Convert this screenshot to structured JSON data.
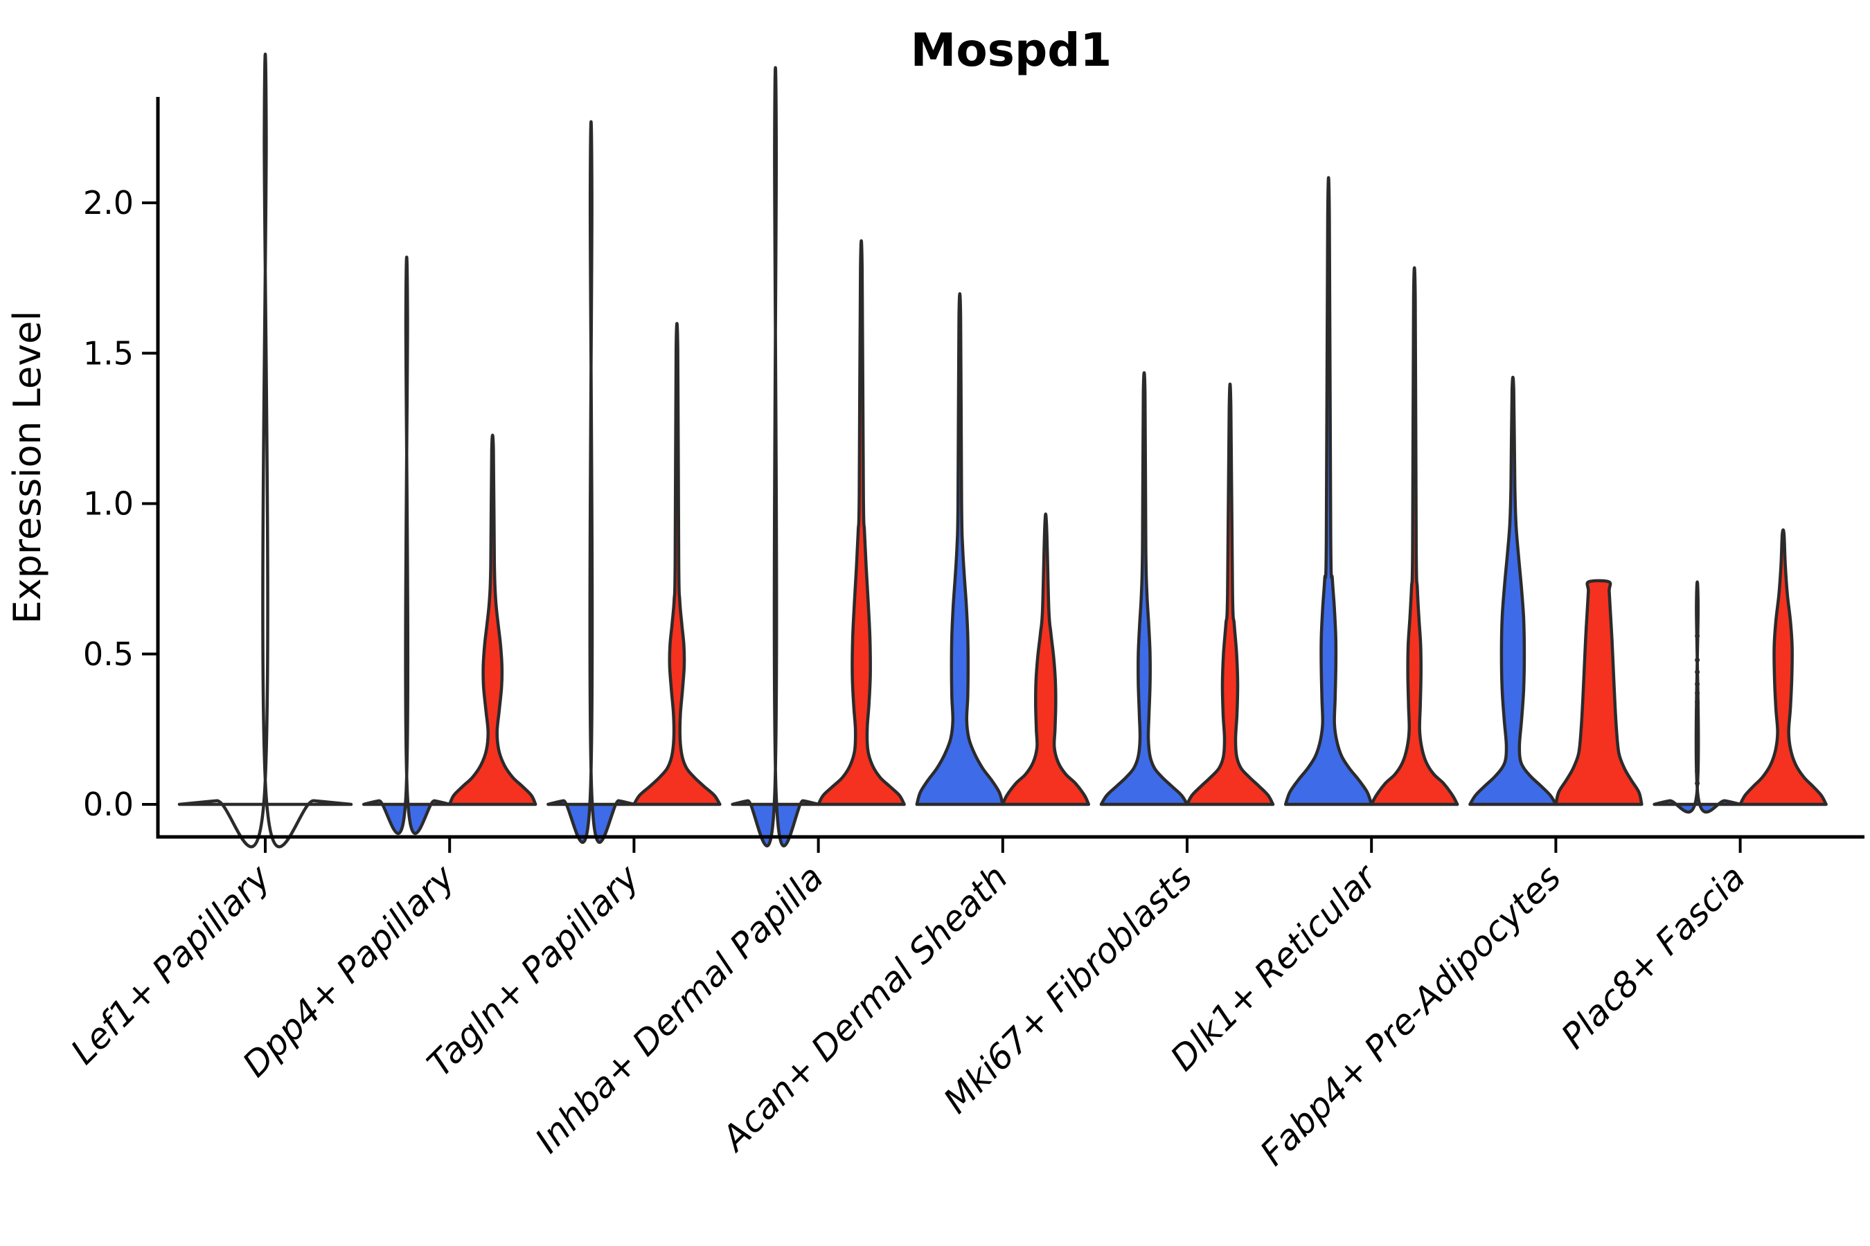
{
  "figure": {
    "title": "Mospd1",
    "ylabel": "Expression Level"
  },
  "chart_data": {
    "type": "violin",
    "title": "Mospd1",
    "xlabel": "",
    "ylabel": "Expression Level",
    "grid": false,
    "legend_position": "none",
    "ylim": [
      0,
      2.35
    ],
    "ytick_labels": [
      "0.0",
      "0.5",
      "1.0",
      "1.5",
      "2.0"
    ],
    "ytick_values": [
      0.0,
      0.5,
      1.0,
      1.5,
      2.0
    ],
    "categories": [
      "Lef1+ Papillary",
      "Dpp4+ Papillary",
      "Tagln+ Papillary",
      "Inhba+ Dermal Papilla",
      "Acan+ Dermal Sheath",
      "Mki67+ Fibroblasts",
      "Dlk1+ Reticular",
      "Fabp4+ Pre-Adipocytes",
      "Plac8+ Fascia"
    ],
    "colors": {
      "blue": "#3E6BE8",
      "red": "#F4321F",
      "outline": "#2b2b2b"
    },
    "violins": [
      {
        "category": "Lef1+ Papillary",
        "group": "single",
        "pos": "center",
        "fill": "none",
        "max_expression": 2.22,
        "profile": [
          [
            0,
            124
          ],
          [
            0.012,
            70
          ],
          [
            0.025,
            1.4
          ],
          [
            2.22,
            1.4
          ]
        ]
      },
      {
        "category": "Dpp4+ Papillary",
        "group": "blue",
        "pos": "left",
        "fill": "blue",
        "max_expression": 1.62,
        "profile": [
          [
            0,
            62
          ],
          [
            0.012,
            40
          ],
          [
            0.025,
            1.2
          ],
          [
            1.62,
            1.2
          ]
        ]
      },
      {
        "category": "Dpp4+ Papillary",
        "group": "red",
        "pos": "right",
        "fill": "red",
        "max_expression": 1.18,
        "profile": [
          [
            0,
            62
          ],
          [
            0.03,
            56
          ],
          [
            0.06,
            43
          ],
          [
            0.09,
            29
          ],
          [
            0.13,
            17
          ],
          [
            0.18,
            9
          ],
          [
            0.24,
            6.5
          ],
          [
            0.31,
            9.5
          ],
          [
            0.39,
            13
          ],
          [
            0.46,
            13.5
          ],
          [
            0.53,
            11.5
          ],
          [
            0.6,
            8
          ],
          [
            0.68,
            4.5
          ],
          [
            0.8,
            2.6
          ],
          [
            1.18,
            1.2
          ]
        ]
      },
      {
        "category": "Tagln+ Papillary",
        "group": "blue",
        "pos": "left",
        "fill": "blue",
        "max_expression": 2.02,
        "profile": [
          [
            0,
            62
          ],
          [
            0.012,
            40
          ],
          [
            0.025,
            1.2
          ],
          [
            2.02,
            1.2
          ]
        ]
      },
      {
        "category": "Tagln+ Papillary",
        "group": "red",
        "pos": "right",
        "fill": "red",
        "max_expression": 1.51,
        "profile": [
          [
            0,
            62
          ],
          [
            0.03,
            54
          ],
          [
            0.06,
            39
          ],
          [
            0.09,
            25
          ],
          [
            0.12,
            14
          ],
          [
            0.16,
            7.5
          ],
          [
            0.22,
            4.5
          ],
          [
            0.3,
            5
          ],
          [
            0.38,
            8
          ],
          [
            0.46,
            10.5
          ],
          [
            0.53,
            10
          ],
          [
            0.6,
            7
          ],
          [
            0.68,
            4
          ],
          [
            0.8,
            2.6
          ],
          [
            1.51,
            1.2
          ]
        ]
      },
      {
        "category": "Inhba+ Dermal Papilla",
        "group": "blue",
        "pos": "left",
        "fill": "blue",
        "max_expression": 2.18,
        "profile": [
          [
            0,
            62
          ],
          [
            0.012,
            40
          ],
          [
            0.025,
            1.2
          ],
          [
            2.18,
            1.2
          ]
        ]
      },
      {
        "category": "Inhba+ Dermal Papilla",
        "group": "red",
        "pos": "right",
        "fill": "red",
        "max_expression": 1.78,
        "profile": [
          [
            0,
            62
          ],
          [
            0.03,
            55
          ],
          [
            0.06,
            41
          ],
          [
            0.09,
            27
          ],
          [
            0.13,
            16
          ],
          [
            0.18,
            9.5
          ],
          [
            0.25,
            8.5
          ],
          [
            0.33,
            11
          ],
          [
            0.43,
            13
          ],
          [
            0.55,
            12.5
          ],
          [
            0.67,
            10
          ],
          [
            0.79,
            7
          ],
          [
            0.91,
            4.5
          ],
          [
            1.03,
            3
          ],
          [
            1.78,
            1.2
          ]
        ]
      },
      {
        "category": "Acan+ Dermal Sheath",
        "group": "blue",
        "pos": "left",
        "fill": "blue",
        "max_expression": 1.62,
        "profile": [
          [
            0,
            62
          ],
          [
            0.04,
            57
          ],
          [
            0.08,
            46
          ],
          [
            0.12,
            33
          ],
          [
            0.17,
            21
          ],
          [
            0.22,
            13
          ],
          [
            0.28,
            10
          ],
          [
            0.36,
            11.5
          ],
          [
            0.46,
            12
          ],
          [
            0.56,
            11.5
          ],
          [
            0.66,
            9.5
          ],
          [
            0.76,
            6.5
          ],
          [
            0.86,
            4
          ],
          [
            1.0,
            2.6
          ],
          [
            1.62,
            1.2
          ]
        ]
      },
      {
        "category": "Acan+ Dermal Sheath",
        "group": "red",
        "pos": "right",
        "fill": "red",
        "max_expression": 0.93,
        "profile": [
          [
            0,
            62
          ],
          [
            0.03,
            56
          ],
          [
            0.07,
            43
          ],
          [
            0.1,
            29
          ],
          [
            0.14,
            18
          ],
          [
            0.19,
            12.5
          ],
          [
            0.25,
            13.5
          ],
          [
            0.33,
            14.5
          ],
          [
            0.41,
            14
          ],
          [
            0.49,
            11.5
          ],
          [
            0.57,
            7.5
          ],
          [
            0.65,
            4.5
          ],
          [
            0.93,
            1.2
          ]
        ]
      },
      {
        "category": "Mki67+ Fibroblasts",
        "group": "blue",
        "pos": "left",
        "fill": "blue",
        "max_expression": 1.37,
        "profile": [
          [
            0,
            62
          ],
          [
            0.03,
            54
          ],
          [
            0.06,
            40
          ],
          [
            0.09,
            26
          ],
          [
            0.12,
            15
          ],
          [
            0.16,
            8.5
          ],
          [
            0.22,
            6
          ],
          [
            0.3,
            7
          ],
          [
            0.4,
            8.5
          ],
          [
            0.5,
            8.5
          ],
          [
            0.6,
            6.5
          ],
          [
            0.7,
            4
          ],
          [
            0.85,
            2.4
          ],
          [
            1.37,
            1.2
          ]
        ]
      },
      {
        "category": "Mki67+ Fibroblasts",
        "group": "red",
        "pos": "right",
        "fill": "red",
        "max_expression": 1.32,
        "profile": [
          [
            0,
            62
          ],
          [
            0.03,
            55
          ],
          [
            0.06,
            42
          ],
          [
            0.09,
            28
          ],
          [
            0.12,
            16
          ],
          [
            0.16,
            9.5
          ],
          [
            0.22,
            8
          ],
          [
            0.3,
            10
          ],
          [
            0.4,
            11
          ],
          [
            0.5,
            9.5
          ],
          [
            0.6,
            6
          ],
          [
            0.7,
            3.6
          ],
          [
            1.32,
            1.2
          ]
        ]
      },
      {
        "category": "Dlk1+ Reticular",
        "group": "blue",
        "pos": "left",
        "fill": "blue",
        "max_expression": 1.95,
        "profile": [
          [
            0,
            62
          ],
          [
            0.04,
            56
          ],
          [
            0.08,
            44
          ],
          [
            0.12,
            30
          ],
          [
            0.16,
            19
          ],
          [
            0.21,
            12
          ],
          [
            0.27,
            8.5
          ],
          [
            0.35,
            9.5
          ],
          [
            0.45,
            10.5
          ],
          [
            0.55,
            10.5
          ],
          [
            0.65,
            8.5
          ],
          [
            0.75,
            5.5
          ],
          [
            0.88,
            3.2
          ],
          [
            1.95,
            1.2
          ]
        ]
      },
      {
        "category": "Dlk1+ Reticular",
        "group": "red",
        "pos": "right",
        "fill": "red",
        "max_expression": 1.68,
        "profile": [
          [
            0,
            62
          ],
          [
            0.03,
            55
          ],
          [
            0.07,
            42
          ],
          [
            0.1,
            28
          ],
          [
            0.14,
            17
          ],
          [
            0.19,
            10.5
          ],
          [
            0.25,
            7.5
          ],
          [
            0.33,
            8.5
          ],
          [
            0.43,
            9.5
          ],
          [
            0.53,
            9
          ],
          [
            0.62,
            6.5
          ],
          [
            0.72,
            4.2
          ],
          [
            0.85,
            2.6
          ],
          [
            1.68,
            1.2
          ]
        ]
      },
      {
        "category": "Fabp4+ Pre-Adipocytes",
        "group": "blue",
        "pos": "left",
        "fill": "blue",
        "max_expression": 1.38,
        "profile": [
          [
            0,
            62
          ],
          [
            0.03,
            54
          ],
          [
            0.06,
            41
          ],
          [
            0.09,
            27
          ],
          [
            0.12,
            16
          ],
          [
            0.15,
            10.5
          ],
          [
            0.2,
            9.5
          ],
          [
            0.28,
            12.5
          ],
          [
            0.38,
            15.5
          ],
          [
            0.5,
            16.5
          ],
          [
            0.62,
            15.5
          ],
          [
            0.73,
            12
          ],
          [
            0.83,
            8
          ],
          [
            0.93,
            4.5
          ],
          [
            1.06,
            2.8
          ],
          [
            1.38,
            1.2
          ]
        ]
      },
      {
        "category": "Fabp4+ Pre-Adipocytes",
        "group": "red",
        "pos": "right",
        "fill": "red",
        "flat_top": true,
        "max_expression": 0.74,
        "profile": [
          [
            0,
            62
          ],
          [
            0.04,
            58
          ],
          [
            0.08,
            47
          ],
          [
            0.12,
            37
          ],
          [
            0.17,
            29
          ],
          [
            0.25,
            25.5
          ],
          [
            0.35,
            23
          ],
          [
            0.45,
            21
          ],
          [
            0.55,
            19
          ],
          [
            0.65,
            16.5
          ],
          [
            0.71,
            15
          ],
          [
            0.74,
            14.5
          ]
        ]
      },
      {
        "category": "Plac8+ Fascia",
        "group": "blue",
        "pos": "left",
        "fill": "blue",
        "max_expression": 0.66,
        "profile": [
          [
            0,
            62
          ],
          [
            0.012,
            40
          ],
          [
            0.025,
            1.2
          ],
          [
            0.66,
            1.2
          ]
        ],
        "cell_dots": [
          0.07,
          0.11,
          0.15,
          0.19,
          0.22,
          0.25,
          0.28,
          0.31,
          0.34,
          0.37,
          0.4,
          0.44,
          0.48,
          0.56
        ]
      },
      {
        "category": "Plac8+ Fascia",
        "group": "red",
        "pos": "right",
        "fill": "red",
        "max_expression": 0.9,
        "profile": [
          [
            0,
            62
          ],
          [
            0.03,
            55
          ],
          [
            0.06,
            43
          ],
          [
            0.09,
            30
          ],
          [
            0.13,
            18.5
          ],
          [
            0.18,
            11
          ],
          [
            0.24,
            8
          ],
          [
            0.32,
            10.5
          ],
          [
            0.42,
            12.5
          ],
          [
            0.52,
            13
          ],
          [
            0.61,
            10.5
          ],
          [
            0.7,
            6
          ],
          [
            0.8,
            3
          ],
          [
            0.9,
            1.2
          ]
        ]
      }
    ]
  }
}
